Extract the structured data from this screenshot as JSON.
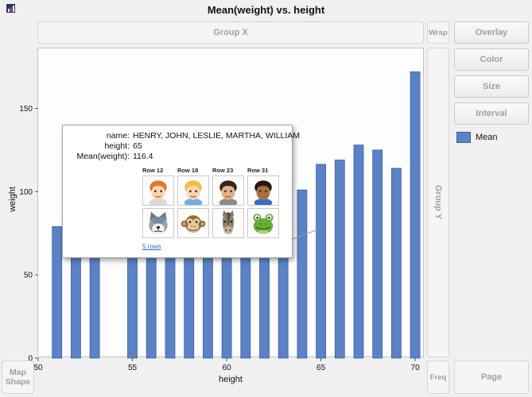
{
  "app": {
    "title": "Mean(weight) vs. height"
  },
  "drop_zones": {
    "group_x": "Group X",
    "wrap": "Wrap",
    "group_y": "Group Y",
    "map_shape": "Map Shape",
    "freq": "Freq",
    "page": "Page"
  },
  "right_panel": {
    "buttons": [
      "Overlay",
      "Color",
      "Size",
      "Interval"
    ],
    "legend_label": "Mean"
  },
  "colors": {
    "bar": "#5b82c6",
    "bar_edge": "#41619e",
    "link": "#3366cc"
  },
  "chart_data": {
    "type": "bar",
    "title": "Mean(weight) vs. height",
    "xlabel": "height",
    "ylabel": "weight",
    "xlim": [
      50,
      70.5
    ],
    "ylim": [
      0,
      186
    ],
    "x_ticks": [
      50,
      55,
      60,
      65,
      70
    ],
    "y_ticks": [
      0,
      50,
      100,
      150
    ],
    "legend": [
      {
        "name": "Mean",
        "color": "#5b82c6"
      }
    ],
    "bars": [
      {
        "x": 51,
        "y": 79
      },
      {
        "x": 52,
        "y": 64
      },
      {
        "x": 53,
        "y": 74
      },
      {
        "x": 55,
        "y": 75
      },
      {
        "x": 56,
        "y": 90
      },
      {
        "x": 57,
        "y": 84
      },
      {
        "x": 58,
        "y": 94
      },
      {
        "x": 59,
        "y": 90
      },
      {
        "x": 60,
        "y": 88
      },
      {
        "x": 61,
        "y": 93
      },
      {
        "x": 62,
        "y": 95
      },
      {
        "x": 63,
        "y": 98
      },
      {
        "x": 64,
        "y": 101
      },
      {
        "x": 65,
        "y": 116.4
      },
      {
        "x": 66,
        "y": 119
      },
      {
        "x": 67,
        "y": 128
      },
      {
        "x": 68,
        "y": 125
      },
      {
        "x": 69,
        "y": 114
      },
      {
        "x": 70,
        "y": 172
      }
    ]
  },
  "tooltip": {
    "rows": [
      {
        "label": "name:",
        "value": "HENRY, JOHN, LESLIE, MARTHA, WILLIAM"
      },
      {
        "label": "height:",
        "value": "65"
      },
      {
        "label": "Mean(weight):",
        "value": "116.4"
      }
    ],
    "columns": [
      "Row 12",
      "Row 18",
      "Row 23",
      "Row 31"
    ],
    "avatar_rows": [
      [
        "child-redhead",
        "child-blonde",
        "child-darkhair",
        "child-brown"
      ],
      [
        "husky-dog",
        "monkey",
        "horse",
        "frog"
      ]
    ],
    "link": "5 rows"
  }
}
